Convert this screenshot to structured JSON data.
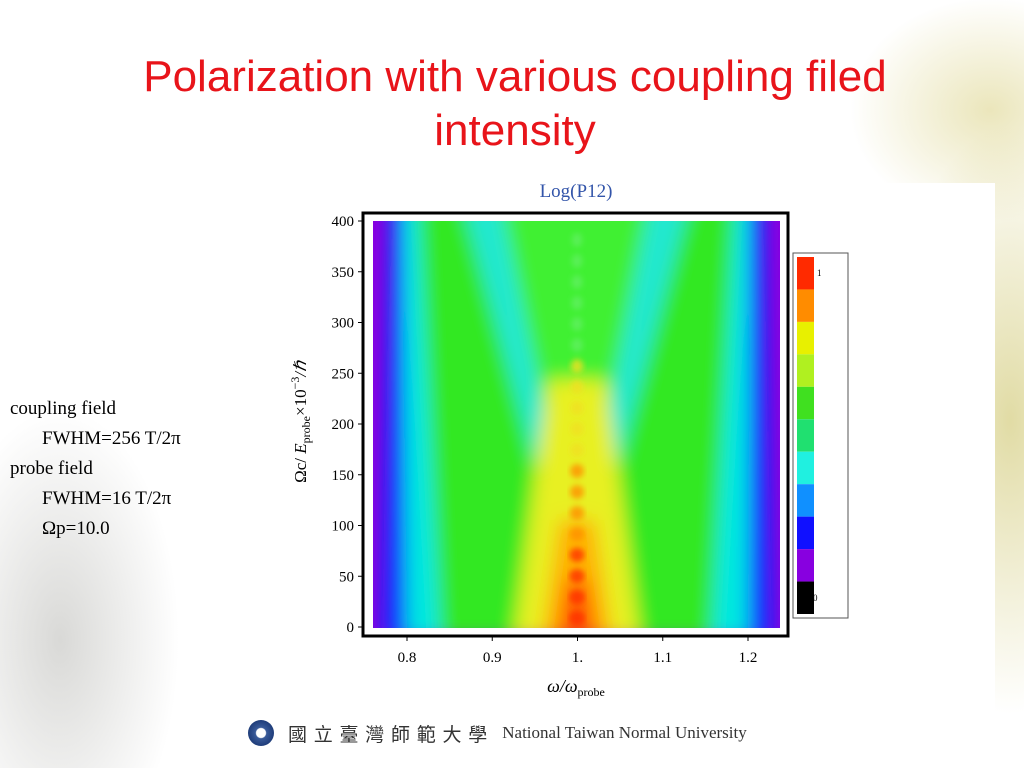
{
  "title": "Polarization with various coupling filed intensity",
  "notes": [
    {
      "text": "coupling field",
      "indent": false
    },
    {
      "text": "FWHM=256 T/2π",
      "indent": true
    },
    {
      "text": "probe field",
      "indent": false
    },
    {
      "text": "FWHM=16 T/2π",
      "indent": true
    },
    {
      "text": "Ωp=10.0",
      "indent": true
    }
  ],
  "figure": {
    "title": "Log(P12)",
    "y_label": {
      "before": "Ωc/ ",
      "var": "E",
      "sub": "probe",
      "times": "×10",
      "sup": "−3",
      "after": "/ℏ"
    },
    "x_label": {
      "main": "ω/ω",
      "sub": "probe"
    },
    "y_tick_labels": [
      "0",
      "50",
      "100",
      "150",
      "200",
      "250",
      "300",
      "350",
      "400"
    ],
    "x_tick_labels": [
      "0.8",
      "0.9",
      "1.",
      "1.1",
      "1.2"
    ],
    "colorbar_labels": {
      "top": "1",
      "bottom": "0"
    }
  },
  "footer": {
    "chinese": "國 立 臺 灣 師 範 大 學",
    "english": "National Taiwan Normal University"
  }
}
